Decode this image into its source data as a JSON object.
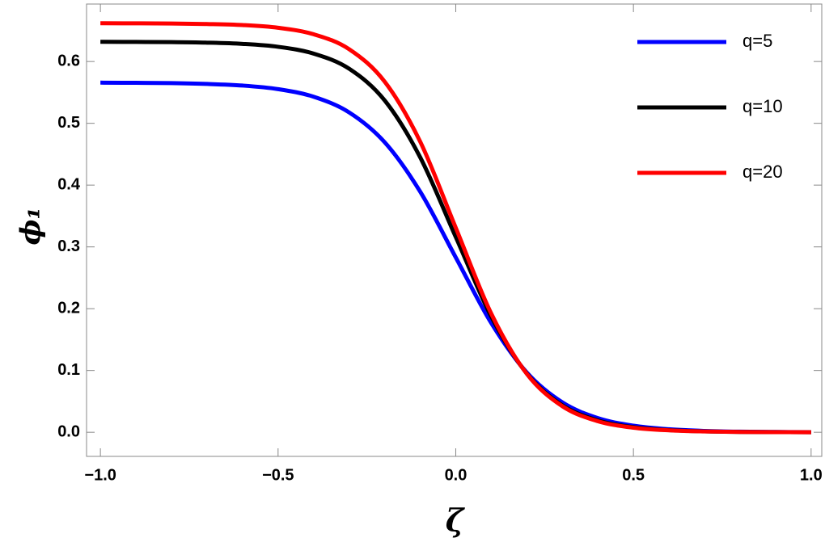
{
  "chart_data": {
    "type": "line",
    "x_label": "ζ",
    "y_label": "ϕ₁",
    "x": [
      -1.0,
      -0.9,
      -0.8,
      -0.7,
      -0.6,
      -0.5,
      -0.4,
      -0.3,
      -0.2,
      -0.1,
      0.0,
      0.1,
      0.2,
      0.3,
      0.4,
      0.5,
      0.6,
      0.7,
      0.8,
      0.9,
      1.0
    ],
    "series": [
      {
        "name": "q=5",
        "color": "#0000ff",
        "values": [
          0.5658,
          0.5655,
          0.565,
          0.5637,
          0.5611,
          0.5553,
          0.543,
          0.5176,
          0.4693,
          0.3893,
          0.283,
          0.1767,
          0.0967,
          0.0484,
          0.0229,
          0.0107,
          0.0049,
          0.0022,
          0.001,
          0.0005,
          0.0002
        ]
      },
      {
        "name": "q=10",
        "color": "#000000",
        "values": [
          0.6319,
          0.6317,
          0.6314,
          0.6305,
          0.6285,
          0.6238,
          0.6128,
          0.5883,
          0.537,
          0.4449,
          0.316,
          0.1871,
          0.095,
          0.0437,
          0.0192,
          0.0082,
          0.0035,
          0.0015,
          0.0006,
          0.0003,
          0.0001
        ]
      },
      {
        "name": "q=20",
        "color": "#ff0000",
        "values": [
          0.6619,
          0.6618,
          0.6615,
          0.6607,
          0.659,
          0.6546,
          0.6441,
          0.6199,
          0.5673,
          0.4702,
          0.331,
          0.1919,
          0.0946,
          0.0422,
          0.0179,
          0.0074,
          0.0031,
          0.0013,
          0.0005,
          0.0002,
          0.0001
        ]
      }
    ],
    "xlim": [
      -1.039,
      1.03
    ],
    "ylim": [
      -0.039,
      0.693
    ],
    "xticks": [
      {
        "value": -1.0,
        "label": "−1.0"
      },
      {
        "value": -0.5,
        "label": "−0.5"
      },
      {
        "value": 0.0,
        "label": "0.0"
      },
      0.5,
      {
        "value": 1.0,
        "label": "1.0"
      }
    ],
    "yticks": [
      {
        "value": 0.0,
        "label": "0.0"
      },
      0.1,
      0.2,
      0.3,
      0.4,
      0.5,
      0.6
    ],
    "grid": false,
    "legend": "upper right"
  }
}
